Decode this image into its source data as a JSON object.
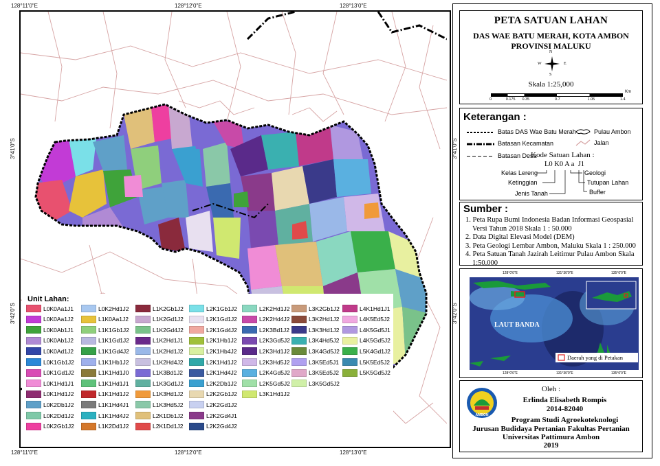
{
  "coords": {
    "top": [
      "128°11'0\"E",
      "128°12'0\"E",
      "128°13'0\"E"
    ],
    "bottom": [
      "128°11'0\"E",
      "128°12'0\"E",
      "128°13'0\"E"
    ],
    "left": [
      "3°41'0\"S",
      "3°42'0\"S"
    ],
    "right": [
      "3°41'0\"S",
      "3°42'0\"S"
    ]
  },
  "title": {
    "main": "PETA SATUAN LAHAN",
    "sub1": "DAS WAE BATU MERAH, KOTA AMBON",
    "sub2": "PROVINSI MALUKU",
    "scale": "Skala 1:25,000",
    "scalebar_ticks": [
      "0",
      "0.175",
      "0.35",
      "0.7",
      "1.05",
      "1.4"
    ],
    "scalebar_unit": "Km",
    "north": {
      "n": "N",
      "s": "S",
      "e": "E",
      "w": "W"
    }
  },
  "keterangan": {
    "heading": "Keterangan :",
    "items": [
      "Batas DAS Wae Batu Merah",
      "Batasan Kecamatan",
      "Batasan Desa",
      "Pulau Ambon",
      "Jalan"
    ],
    "kode_title": "Kode Satuan Lahan :",
    "kode_code": "L0 K0 A a  J1",
    "kode_labels": [
      "Kelas Lereng",
      "Ketinggian",
      "Jenis Tanah",
      "Geologi",
      "Tutupan Lahan",
      "Buffer"
    ]
  },
  "sumber": {
    "heading": "Sumber :",
    "items": [
      "1. Peta Rupa Bumi Indonesia Badan Informasi Geospasial",
      "Versi Tahun 2018 Skala 1 : 50.000",
      "2. Data Digital Elevasi Model (DEM)",
      "3. Peta Geologi Lembar Ambon, Maluku Skala 1 : 250.000",
      "4. Peta Satuan Tanah Jazirah Leitimur Pulau Ambon Skala",
      "1:50.000"
    ]
  },
  "inset": {
    "sea_label": "LAUT BANDA",
    "legend_label": "Daerah yang di Petakan",
    "top_ticks": [
      "128°0'0\"E",
      "131°30'0\"E",
      "135°0'0\"E"
    ],
    "bottom_ticks": [
      "128°0'0\"E",
      "131°30'0\"E",
      "135°0'0\"E"
    ]
  },
  "author": {
    "oleh": "Oleh :",
    "name": "Erlinda Elisabeth Rompis",
    "nim": "2014-82040",
    "line1": "Program Studi Agroekoteknologi",
    "line2": "Jurusan Budidaya Pertanian Fakultas Pertanian",
    "line3": "Universitas Pattimura Ambon",
    "year": "2019",
    "logo_text": "AMBON"
  },
  "unit_lahan": {
    "heading": "Unit Lahan:",
    "columns": [
      [
        [
          "L0K0Aa1J1",
          "#e8516f"
        ],
        [
          "L0K0Aa1J2",
          "#c23bd6"
        ],
        [
          "L0K0Ab1J1",
          "#3fa33a"
        ],
        [
          "L0K0Ab1J2",
          "#b08ad4"
        ],
        [
          "L0K0Ad1J2",
          "#3246a8"
        ],
        [
          "L0K1Gb1J2",
          "#2a88d8"
        ],
        [
          "L0K1Gd1J2",
          "#d94bb5"
        ],
        [
          "L0K1Hd1J1",
          "#f08cd6"
        ],
        [
          "L0K1Hd1J2",
          "#8e2c70"
        ],
        [
          "L0K2Db1J2",
          "#5fa0c8"
        ],
        [
          "L0K2Dd1J2",
          "#7fc9a8"
        ],
        [
          "L0K2Gb1J2",
          "#ee3fa0"
        ]
      ],
      [
        [
          "L0K2Hd1J2",
          "#a8c8f0"
        ],
        [
          "L1K0Aa1J2",
          "#e7c23a"
        ],
        [
          "L1K1Gb1J2",
          "#8fcf7c"
        ],
        [
          "L1K1Gd1J2",
          "#b8b8e0"
        ],
        [
          "L1K1Gd4J2",
          "#36a148"
        ],
        [
          "L1K1Hb1J2",
          "#9fb0ec"
        ],
        [
          "L1K1Hd1J0",
          "#8a7a3a"
        ],
        [
          "L1K1Hd1J1",
          "#5ec27a"
        ],
        [
          "L1K1Hd1J2",
          "#c0282b"
        ],
        [
          "L1K1Hd4J1",
          "#7a7a7a"
        ],
        [
          "L1K1Hd4J2",
          "#2bb0c0"
        ],
        [
          "L1K2Dd1J2",
          "#d4772a"
        ]
      ],
      [
        [
          "L1K2Gb1J2",
          "#8a2a3c"
        ],
        [
          "L1K2Gd1J2",
          "#c8a8d0"
        ],
        [
          "L1K2Gd4J2",
          "#7ac28a"
        ],
        [
          "L1K2Hd1J1",
          "#6a2a8a"
        ],
        [
          "L1K2Hd1J2",
          "#9ab8e8"
        ],
        [
          "L1K2Hd4J2",
          "#c8c0e0"
        ],
        [
          "L1K3Bd1J2",
          "#7a6ad4"
        ],
        [
          "L1K3Gd1J2",
          "#60b0a0"
        ],
        [
          "L1K3Hd1J2",
          "#f09a3a"
        ],
        [
          "L1K3Hd5J2",
          "#8ac8a8"
        ],
        [
          "L2K1Db1J2",
          "#e0c07a"
        ],
        [
          "L2K1Dd1J2",
          "#e04a4a"
        ]
      ],
      [
        [
          "L2K1Gb1J2",
          "#7ae0e8"
        ],
        [
          "L2K1Gd1J2",
          "#e8e0f0"
        ],
        [
          "L2K1Gd4J2",
          "#f0a8a0"
        ],
        [
          "L2K1Hb1J2",
          "#a0c03a"
        ],
        [
          "L2K1Hb4J2",
          "#d8f0a0"
        ],
        [
          "L2K1Hd1J2",
          "#30a8a8"
        ],
        [
          "L2K1Hd4J2",
          "#3a5aa0"
        ],
        [
          "L2K2Db1J2",
          "#3aa0d0"
        ],
        [
          "L2K2Gb1J2",
          "#e8d8b0"
        ],
        [
          "L2K2Gd1J2",
          "#c8d0f0"
        ],
        [
          "L2K2Gd4J1",
          "#8a3a8a"
        ],
        [
          "L2K2Gd4J2",
          "#2a4a8a"
        ]
      ],
      [
        [
          "L2K2Hd1J2",
          "#8ad8c0"
        ],
        [
          "L2K2Hd4J2",
          "#c84aa8"
        ],
        [
          "L2K3Bd1J2",
          "#3a6ab0"
        ],
        [
          "L2K3Gd5J2",
          "#7a4ab0"
        ],
        [
          "L2K3Hd1J2",
          "#5a2a8a"
        ],
        [
          "L2K3Hd5J2",
          "#d0b8e8"
        ],
        [
          "L2K4Gd5J2",
          "#5ab0e0"
        ],
        [
          "L2K5Gd5J2",
          "#a0e0a8"
        ],
        [
          "L3K1Hd1J2",
          "#d0e870"
        ]
      ],
      [
        [
          "L3K2Gb1J2",
          "#c89a7a"
        ],
        [
          "L3K2Hd1J2",
          "#8a4a3a"
        ],
        [
          "L3K3Hd1J2",
          "#3a3a8a"
        ],
        [
          "L3K4Hd5J2",
          "#3ab0b0"
        ],
        [
          "L3K4Gd5J2",
          "#6a8a3a"
        ],
        [
          "L3K5Ed5J1",
          "#b0a0f0"
        ],
        [
          "L3K5Ed5J2",
          "#e0a8c8"
        ],
        [
          "L3K5Gd5J2",
          "#d0f0a8"
        ]
      ],
      [
        [
          "L4K1Hd1J1",
          "#c03a8a"
        ],
        [
          "L4K5Ed5J2",
          "#f0a8e0"
        ],
        [
          "L4K5Gd5J1",
          "#b098e0"
        ],
        [
          "L4K5Gd5J2",
          "#e8f0a0"
        ],
        [
          "L5K4Gd1J2",
          "#3ab04a"
        ],
        [
          "L5K5Ed5J2",
          "#3a8ab0"
        ],
        [
          "L5K5Gd5J2",
          "#8ab03a"
        ]
      ]
    ]
  }
}
